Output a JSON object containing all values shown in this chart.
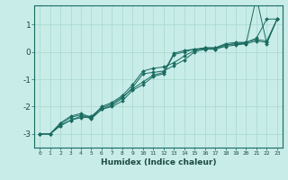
{
  "xlabel": "Humidex (Indice chaleur)",
  "ylabel": "",
  "bg_color": "#c8ece8",
  "grid_color": "#a8d8d0",
  "line_color": "#1a6b60",
  "xlim": [
    -0.5,
    23.5
  ],
  "ylim": [
    -3.5,
    1.7
  ],
  "x_ticks": [
    0,
    1,
    2,
    3,
    4,
    5,
    6,
    7,
    8,
    9,
    10,
    11,
    12,
    13,
    14,
    15,
    16,
    17,
    18,
    19,
    20,
    21,
    22,
    23
  ],
  "y_ticks": [
    -3,
    -2,
    -1,
    0,
    1
  ],
  "series": [
    [
      0,
      1,
      2,
      3,
      4,
      5,
      6,
      7,
      8,
      9,
      10,
      11,
      12,
      13,
      14,
      15,
      16,
      17,
      18,
      19,
      20,
      21,
      22,
      23
    ],
    [
      -3.0,
      -3.0,
      -2.7,
      -2.5,
      -2.4,
      -2.4,
      -2.1,
      -2.0,
      -1.8,
      -1.4,
      -1.2,
      -0.9,
      -0.8,
      -0.1,
      0.0,
      0.1,
      0.1,
      0.1,
      0.25,
      0.3,
      0.3,
      2.0,
      0.3,
      1.2
    ],
    [
      -3.0,
      -3.0,
      -2.7,
      -2.5,
      -2.35,
      -2.35,
      -2.05,
      -1.9,
      -1.65,
      -1.35,
      -1.1,
      -0.85,
      -0.75,
      -0.05,
      0.05,
      0.1,
      0.15,
      0.15,
      0.3,
      0.35,
      0.35,
      0.5,
      1.2,
      1.2
    ],
    [
      -3.0,
      -3.0,
      -2.65,
      -2.4,
      -2.3,
      -2.45,
      -2.1,
      -1.95,
      -1.7,
      -1.3,
      -0.8,
      -0.75,
      -0.7,
      -0.5,
      -0.3,
      0.0,
      0.1,
      0.1,
      0.2,
      0.25,
      0.3,
      0.4,
      0.35,
      1.2
    ],
    [
      -3.0,
      -3.0,
      -2.6,
      -2.35,
      -2.25,
      -2.4,
      -2.0,
      -1.85,
      -1.6,
      -1.2,
      -0.7,
      -0.6,
      -0.55,
      -0.4,
      -0.15,
      0.05,
      0.15,
      0.15,
      0.25,
      0.3,
      0.35,
      0.45,
      0.4,
      1.2
    ]
  ]
}
